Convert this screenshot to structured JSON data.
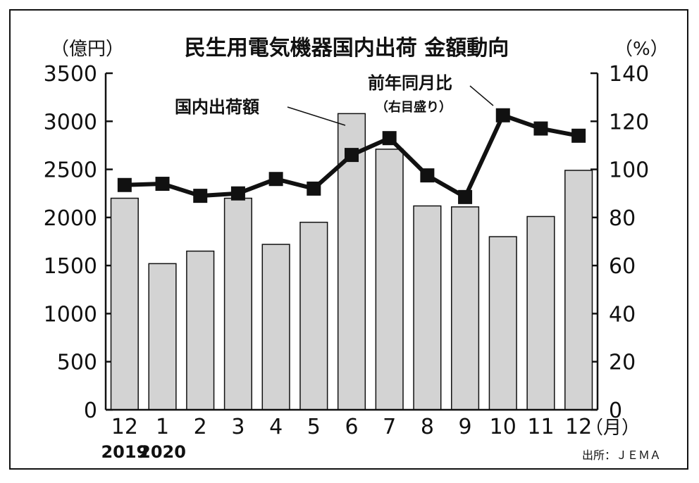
{
  "chart_data": {
    "type": "bar",
    "title": "民生用電気機器国内出荷 金額動向",
    "left_unit": "（億円）",
    "right_unit": "（%）",
    "month_unit": "（月）",
    "categories": [
      "12",
      "1",
      "2",
      "3",
      "4",
      "5",
      "6",
      "7",
      "8",
      "9",
      "10",
      "11",
      "12"
    ],
    "year_labels": [
      {
        "label": "2019",
        "category_index": 0
      },
      {
        "label": "2020",
        "category_index": 1
      }
    ],
    "left_axis": {
      "min": 0,
      "max": 3500,
      "ticks": [
        "0",
        "500",
        "1000",
        "1500",
        "2000",
        "2500",
        "3000",
        "3500"
      ]
    },
    "right_axis": {
      "min": 0,
      "max": 140,
      "ticks": [
        "0",
        "20",
        "40",
        "60",
        "80",
        "100",
        "120",
        "140"
      ]
    },
    "series": [
      {
        "name": "国内出荷額",
        "type": "bar",
        "axis": "left",
        "color": "#d3d3d3",
        "values": [
          2200,
          1520,
          1650,
          2200,
          1720,
          1950,
          3080,
          2710,
          2120,
          2110,
          1800,
          2010,
          2490
        ]
      },
      {
        "name": "前年同月比",
        "note": "（右目盛り）",
        "type": "line",
        "axis": "right",
        "color": "#111111",
        "values": [
          93.5,
          94,
          89,
          90,
          96,
          92,
          106,
          113,
          97.5,
          88.5,
          122.5,
          117,
          114
        ]
      }
    ],
    "source": "出所：ＪＥＭＡ"
  }
}
